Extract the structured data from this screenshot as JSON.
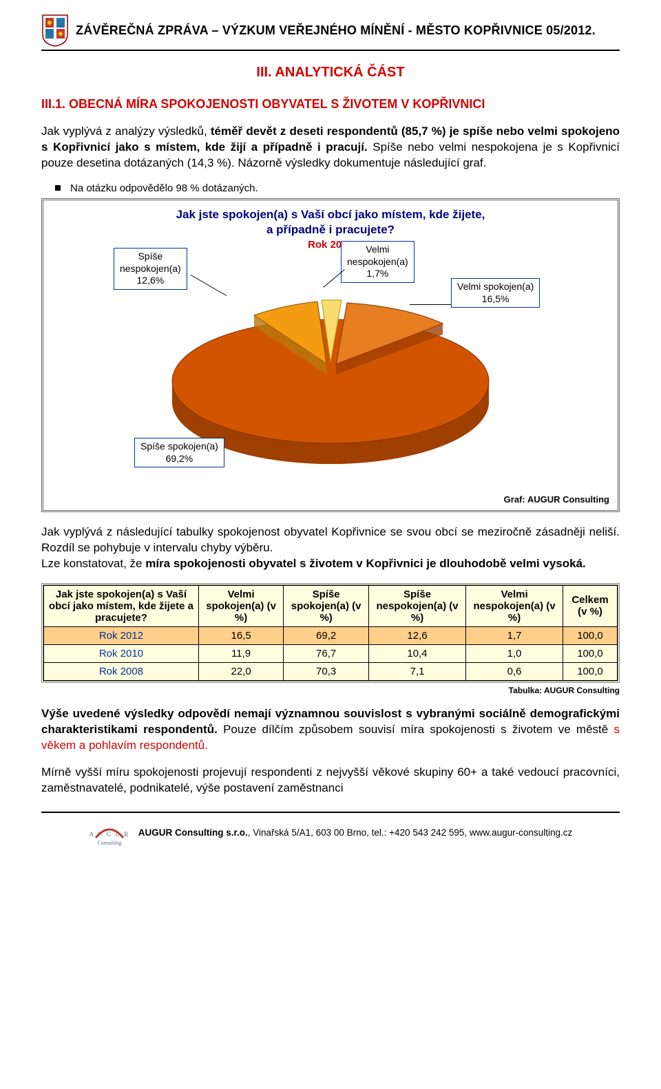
{
  "header": {
    "title": "ZÁVĚREČNÁ ZPRÁVA – VÝZKUM VEŘEJNÉHO MÍNĚNÍ - MĚSTO KOPŘIVNICE 05/2012."
  },
  "section_title": "III. ANALYTICKÁ ČÁST",
  "sub_title": "III.1. OBECNÁ MÍRA SPOKOJENOSTI OBYVATEL S ŽIVOTEM V KOPŘIVNICI",
  "para1_pre": "Jak vyplývá z analýzy výsledků, ",
  "para1_bold": "téměř devět z deseti respondentů (85,7 %) je spíše nebo velmi spokojeno s Kopřivnicí jako s místem, kde žijí a případně i pracují.",
  "para1_post": " Spíše nebo velmi nespokojena je s Kopřivnicí pouze desetina dotázaných (14,3 %). Názorně výsledky dokumentuje následující graf.",
  "bullet1": "Na otázku odpovědělo 98 % dotázaných.",
  "chart": {
    "title_l1": "Jak jste spokojen(a) s Vaší obcí jako místem, kde žijete,",
    "title_l2": "a případně i pracujete?",
    "year": "Rok 2012",
    "slices": [
      {
        "label": "Spíše spokojen(a)",
        "pct": "69,2%",
        "value": 69.2,
        "color": "#d35400"
      },
      {
        "label": "Spíše nespokojen(a)",
        "pct": "12,6%",
        "value": 12.6,
        "color": "#f39c12"
      },
      {
        "label": "Velmi nespokojen(a)",
        "pct": "1,7%",
        "value": 1.7,
        "color": "#f7dc6f"
      },
      {
        "label": "Velmi spokojen(a)",
        "pct": "16,5%",
        "value": 16.5,
        "color": "#e67e22"
      }
    ],
    "callouts": {
      "spise_ne": {
        "l1": "Spíše",
        "l2": "nespokojen(a)",
        "l3": "12,6%"
      },
      "velmi_ne": {
        "l1": "Velmi",
        "l2": "nespokojen(a)",
        "l3": "1,7%"
      },
      "velmi_sp": {
        "l1": "Velmi spokojen(a)",
        "l2": "16,5%"
      },
      "spise_sp": {
        "l1": "Spíše spokojen(a)",
        "l2": "69,2%"
      }
    },
    "credit": "Graf: AUGUR Consulting"
  },
  "para2_pre": "Jak vyplývá z následující tabulky spokojenost obyvatel Kopřivnice se svou obcí se meziročně zásadněji neliší. Rozdíl se pohybuje v intervalu chyby výběru.\nLze konstatovat, že ",
  "para2_bold": "míra spokojenosti obyvatel s životem v Kopřivnici je dlouhodobě velmi vysoká.",
  "table": {
    "head_q": "Jak jste spokojen(a) s Vaší obcí jako místem, kde žijete a pracujete?",
    "cols": [
      "Velmi spokojen(a) (v %)",
      "Spíše spokojen(a) (v %)",
      "Spíše nespokojen(a) (v %)",
      "Velmi nespokojen(a) (v %)",
      "Celkem (v %)"
    ],
    "rows": [
      {
        "year": "Rok 2012",
        "vals": [
          "16,5",
          "69,2",
          "12,6",
          "1,7",
          "100,0"
        ],
        "hl": true
      },
      {
        "year": "Rok 2010",
        "vals": [
          "11,9",
          "76,7",
          "10,4",
          "1,0",
          "100,0"
        ],
        "hl": false
      },
      {
        "year": "Rok 2008",
        "vals": [
          "22,0",
          "70,3",
          "7,1",
          "0,6",
          "100,0"
        ],
        "hl": false
      }
    ],
    "credit": "Tabulka: AUGUR Consulting"
  },
  "para3_b1": "Výše uvedené výsledky odpovědí nemají významnou souvislost s vybranými sociálně demografickými charakteristikami respondentů.",
  "para3_mid": " Pouze dílčím způsobem souvisí míra spokojenosti s životem ve městě ",
  "para3_red": "s věkem a pohlavím respondentů.",
  "para4": "Mírně vyšší míru spokojenosti projevují respondenti z nejvyšší věkové skupiny 60+ a také vedoucí pracovníci, zaměstnavatelé, podnikatelé, výše postavení zaměstnanci",
  "footer": {
    "company_bold": "AUGUR Consulting s.r.o.",
    "rest": ", Vinařská 5/A1, 603 00 Brno, tel.: +420 543 242 595, www.augur-consulting.cz",
    "logo_top": "A U G U R",
    "logo_bottom": "Consulting"
  }
}
